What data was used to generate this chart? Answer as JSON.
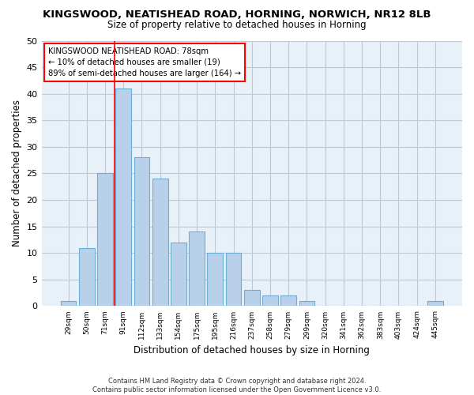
{
  "title": "KINGSWOOD, NEATISHEAD ROAD, HORNING, NORWICH, NR12 8LB",
  "subtitle": "Size of property relative to detached houses in Horning",
  "xlabel": "Distribution of detached houses by size in Horning",
  "ylabel": "Number of detached properties",
  "bar_categories": [
    "29sqm",
    "50sqm",
    "71sqm",
    "91sqm",
    "112sqm",
    "133sqm",
    "154sqm",
    "175sqm",
    "195sqm",
    "216sqm",
    "237sqm",
    "258sqm",
    "279sqm",
    "299sqm",
    "320sqm",
    "341sqm",
    "362sqm",
    "383sqm",
    "403sqm",
    "424sqm",
    "445sqm"
  ],
  "bar_values": [
    1,
    11,
    25,
    41,
    28,
    24,
    12,
    14,
    10,
    10,
    3,
    2,
    2,
    1,
    0,
    0,
    0,
    0,
    0,
    0,
    1
  ],
  "bar_color": "#b8d0ea",
  "bar_edgecolor": "#6baed6",
  "vline_color": "red",
  "vline_pos": 2.5,
  "annotation_box_text": "KINGSWOOD NEATISHEAD ROAD: 78sqm\n← 10% of detached houses are smaller (19)\n89% of semi-detached houses are larger (164) →",
  "ylim": [
    0,
    50
  ],
  "yticks": [
    0,
    5,
    10,
    15,
    20,
    25,
    30,
    35,
    40,
    45,
    50
  ],
  "footer": "Contains HM Land Registry data © Crown copyright and database right 2024.\nContains public sector information licensed under the Open Government Licence v3.0.",
  "bg_color": "#ffffff",
  "plot_bg_color": "#e8f0f8",
  "grid_color": "#c0c8d8"
}
